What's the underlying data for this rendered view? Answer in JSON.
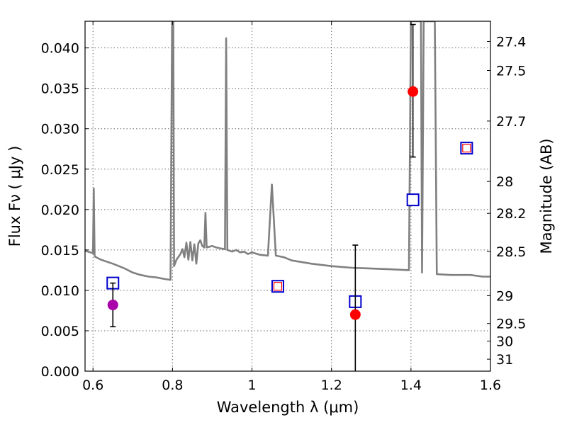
{
  "chart_data": {
    "type": "scatter",
    "xlabel": "Wavelength  λ (μm)",
    "ylabel": "Flux  Fν  ( μJy )",
    "y2label": "Magnitude (AB)",
    "xlim": [
      0.58,
      1.6
    ],
    "ylim": [
      0.0,
      0.0433
    ],
    "grid": true,
    "x_ticks": [
      {
        "value": 0.6,
        "label": "0.6"
      },
      {
        "value": 0.8,
        "label": "0.8"
      },
      {
        "value": 1.0,
        "label": "1"
      },
      {
        "value": 1.2,
        "label": "1.2"
      },
      {
        "value": 1.4,
        "label": "1.4"
      },
      {
        "value": 1.6,
        "label": "1.6"
      }
    ],
    "y_ticks": [
      {
        "value": 0.0,
        "label": "0.000"
      },
      {
        "value": 0.005,
        "label": "0.005"
      },
      {
        "value": 0.01,
        "label": "0.010"
      },
      {
        "value": 0.015,
        "label": "0.015"
      },
      {
        "value": 0.02,
        "label": "0.020"
      },
      {
        "value": 0.025,
        "label": "0.025"
      },
      {
        "value": 0.03,
        "label": "0.030"
      },
      {
        "value": 0.035,
        "label": "0.035"
      },
      {
        "value": 0.04,
        "label": "0.040"
      }
    ],
    "y2_ticks": [
      {
        "mag": 27.4,
        "label": "27.4"
      },
      {
        "mag": 27.5,
        "label": "27.5"
      },
      {
        "mag": 27.7,
        "label": "27.7"
      },
      {
        "mag": 28.0,
        "label": "28"
      },
      {
        "mag": 28.2,
        "label": "28.2"
      },
      {
        "mag": 28.5,
        "label": "28.5"
      },
      {
        "mag": 29.0,
        "label": "29"
      },
      {
        "mag": 29.5,
        "label": "29.5"
      },
      {
        "mag": 30.0,
        "label": "30"
      },
      {
        "mag": 31.0,
        "label": "31"
      }
    ],
    "colors": {
      "model": "#808080",
      "observed": "#ff0000",
      "observed_first": "#aa00aa",
      "model_box": "#0000cc",
      "model_box_inner": "#ff0000",
      "errorbar": "#000000",
      "grid": "#666666"
    },
    "series": [
      {
        "name": "model_spectrum",
        "style": "line",
        "points": [
          [
            0.58,
            0.0149
          ],
          [
            0.6,
            0.0146
          ],
          [
            0.602,
            0.0226
          ],
          [
            0.604,
            0.0142
          ],
          [
            0.62,
            0.0138
          ],
          [
            0.65,
            0.0133
          ],
          [
            0.68,
            0.0127
          ],
          [
            0.7,
            0.0122
          ],
          [
            0.72,
            0.0119
          ],
          [
            0.74,
            0.0117
          ],
          [
            0.76,
            0.0116
          ],
          [
            0.78,
            0.0114
          ],
          [
            0.795,
            0.0113
          ],
          [
            0.799,
            0.0433
          ],
          [
            0.802,
            0.0433
          ],
          [
            0.804,
            0.013
          ],
          [
            0.81,
            0.0138
          ],
          [
            0.82,
            0.0145
          ],
          [
            0.825,
            0.0151
          ],
          [
            0.83,
            0.0141
          ],
          [
            0.835,
            0.0159
          ],
          [
            0.84,
            0.0138
          ],
          [
            0.845,
            0.016
          ],
          [
            0.85,
            0.0137
          ],
          [
            0.855,
            0.0157
          ],
          [
            0.86,
            0.0133
          ],
          [
            0.865,
            0.0158
          ],
          [
            0.87,
            0.0162
          ],
          [
            0.875,
            0.0155
          ],
          [
            0.88,
            0.0153
          ],
          [
            0.883,
            0.0196
          ],
          [
            0.886,
            0.0153
          ],
          [
            0.9,
            0.0155
          ],
          [
            0.91,
            0.0153
          ],
          [
            0.92,
            0.0152
          ],
          [
            0.932,
            0.0151
          ],
          [
            0.935,
            0.0412
          ],
          [
            0.938,
            0.015
          ],
          [
            0.95,
            0.0148
          ],
          [
            0.96,
            0.015
          ],
          [
            0.97,
            0.0147
          ],
          [
            0.98,
            0.0148
          ],
          [
            0.99,
            0.0145
          ],
          [
            1.0,
            0.0147
          ],
          [
            1.02,
            0.0144
          ],
          [
            1.04,
            0.0143
          ],
          [
            1.05,
            0.0231
          ],
          [
            1.06,
            0.0143
          ],
          [
            1.08,
            0.0141
          ],
          [
            1.1,
            0.0137
          ],
          [
            1.15,
            0.0133
          ],
          [
            1.2,
            0.013
          ],
          [
            1.25,
            0.0128
          ],
          [
            1.3,
            0.0127
          ],
          [
            1.35,
            0.0126
          ],
          [
            1.395,
            0.0125
          ],
          [
            1.4,
            0.0433
          ],
          [
            1.425,
            0.0433
          ],
          [
            1.428,
            0.0122
          ],
          [
            1.432,
            0.0433
          ],
          [
            1.46,
            0.0433
          ],
          [
            1.465,
            0.012
          ],
          [
            1.5,
            0.0119
          ],
          [
            1.55,
            0.0119
          ],
          [
            1.58,
            0.0117
          ],
          [
            1.6,
            0.0117
          ]
        ]
      },
      {
        "name": "model_photometry",
        "style": "square",
        "points": [
          {
            "x": 0.65,
            "y": 0.0109,
            "inner": false
          },
          {
            "x": 1.065,
            "y": 0.0105,
            "inner": true
          },
          {
            "x": 1.26,
            "y": 0.0086,
            "inner": false
          },
          {
            "x": 1.405,
            "y": 0.0212,
            "inner": false
          },
          {
            "x": 1.54,
            "y": 0.0276,
            "inner": true
          }
        ]
      },
      {
        "name": "observed_photometry",
        "style": "circle_errorbar",
        "points": [
          {
            "x": 0.65,
            "y": 0.0082,
            "yerr_low": 0.0055,
            "yerr_high": 0.0109,
            "color": "observed_first"
          },
          {
            "x": 1.26,
            "y": 0.007,
            "yerr_low": 0.0,
            "yerr_high": 0.0156,
            "color": "observed"
          },
          {
            "x": 1.405,
            "y": 0.0346,
            "yerr_low": 0.0265,
            "yerr_high": 0.0429,
            "color": "observed"
          }
        ]
      }
    ]
  }
}
